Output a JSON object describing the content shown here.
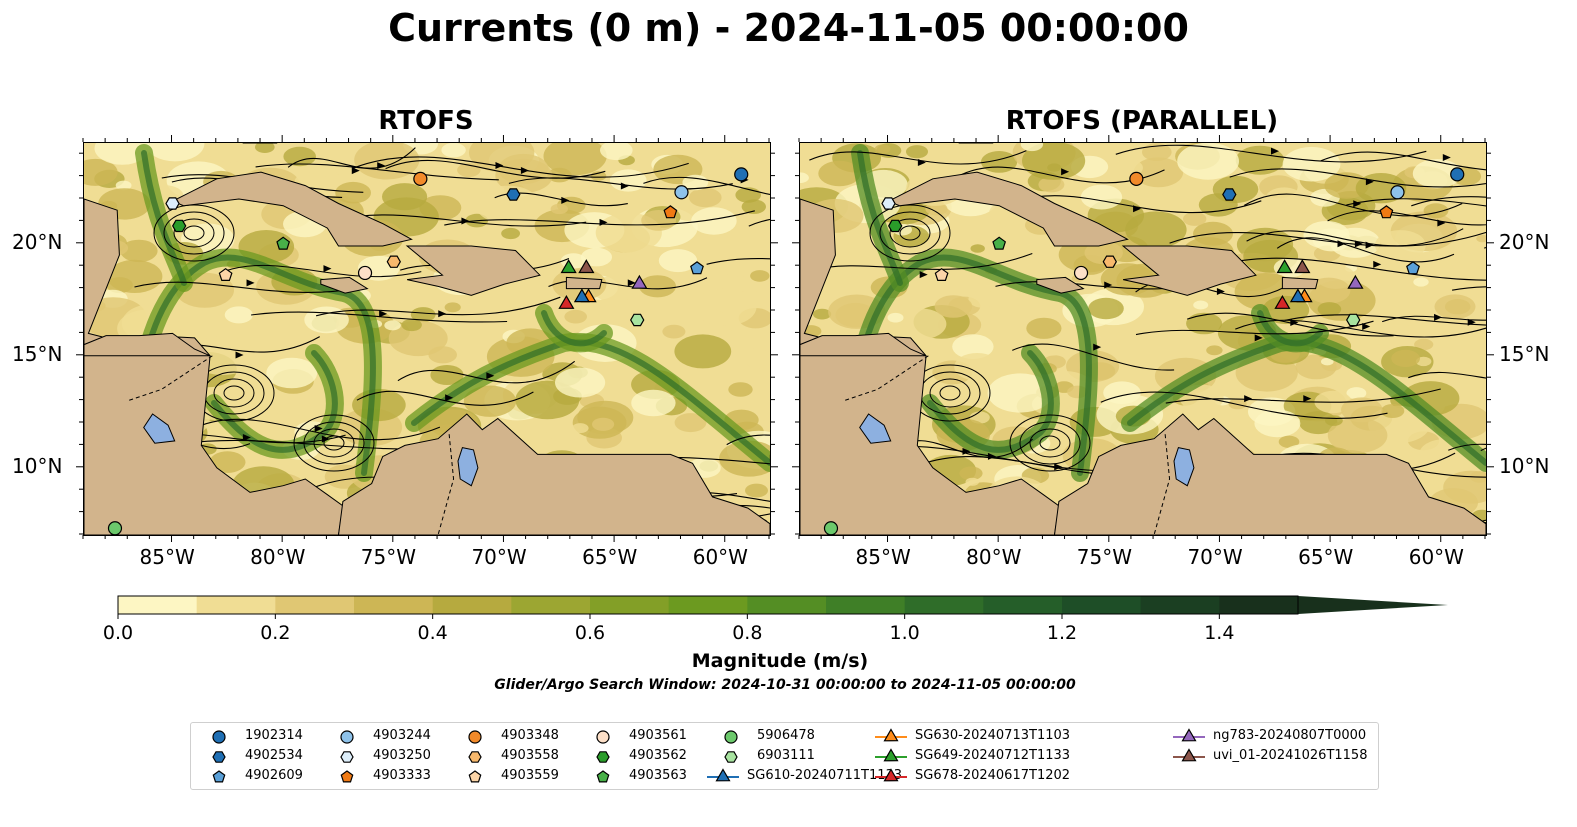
{
  "title": "Currents (0 m) - 2024-11-05 00:00:00",
  "panels": [
    {
      "title": "RTOFS"
    },
    {
      "title": "RTOFS (PARALLEL)"
    }
  ],
  "map": {
    "lon_ticks": [
      "85°W",
      "80°W",
      "75°W",
      "70°W",
      "65°W",
      "60°W"
    ],
    "lat_ticks": [
      "20°N",
      "15°N",
      "10°N"
    ],
    "lon_range": [
      -89,
      -58
    ],
    "lat_range": [
      7,
      24.5
    ]
  },
  "colorbar": {
    "label": "Magnitude (m/s)",
    "ticks": [
      "0.0",
      "0.2",
      "0.4",
      "0.6",
      "0.8",
      "1.0",
      "1.2",
      "1.4"
    ],
    "range": [
      0.0,
      1.5
    ],
    "extend": "max",
    "colors": [
      "#fdf6c3",
      "#f0dd94",
      "#e0c773",
      "#cdb655",
      "#b6aa3f",
      "#9ca632",
      "#839f27",
      "#6c9a20",
      "#548e24",
      "#3f7f27",
      "#2f6d29",
      "#255e29",
      "#1e4e27",
      "#1b3f22",
      "#18301c"
    ]
  },
  "search_window": "Glider/Argo Search Window: 2024-10-31 00:00:00 to 2024-11-05 00:00:00",
  "colors": {
    "land": "#d2b48c",
    "lake": "#8db0e0",
    "river": "#a0b8d8"
  },
  "legend": [
    {
      "label": "1902314",
      "marker": "circle",
      "color": "#1f6fb4"
    },
    {
      "label": "4902534",
      "marker": "hexagon",
      "color": "#1f6fb4"
    },
    {
      "label": "4902609",
      "marker": "pentagon",
      "color": "#5aa0d8"
    },
    {
      "label": "4903244",
      "marker": "circle",
      "color": "#8ec2ea"
    },
    {
      "label": "4903250",
      "marker": "hexagon",
      "color": "#ddeefa"
    },
    {
      "label": "4903333",
      "marker": "pentagon",
      "color": "#f07a14"
    },
    {
      "label": "4903348",
      "marker": "circle",
      "color": "#f28a2a"
    },
    {
      "label": "4903558",
      "marker": "hexagon",
      "color": "#f8b96d"
    },
    {
      "label": "4903559",
      "marker": "pentagon",
      "color": "#fcd5a8"
    },
    {
      "label": "4903561",
      "marker": "circle",
      "color": "#fde0c8"
    },
    {
      "label": "4903562",
      "marker": "hexagon",
      "color": "#2a9c2a"
    },
    {
      "label": "4903563",
      "marker": "pentagon",
      "color": "#48b048"
    },
    {
      "label": "5906478",
      "marker": "circle",
      "color": "#6cc96c"
    },
    {
      "label": "6903111",
      "marker": "hexagon",
      "color": "#a8e3a0"
    },
    {
      "label": "SG610-20240711T1133",
      "marker": "triangle",
      "color": "#1f6fb4"
    },
    {
      "label": "SG630-20240713T1103",
      "marker": "triangle",
      "color": "#ff8c1a"
    },
    {
      "label": "SG649-20240712T1133",
      "marker": "triangle",
      "color": "#2ca02c"
    },
    {
      "label": "SG678-20240617T1202",
      "marker": "triangle",
      "color": "#d62728"
    },
    {
      "label": "ng783-20240807T0000",
      "marker": "triangle",
      "color": "#9467bd"
    },
    {
      "label": "uvi_01-20241026T1158",
      "marker": "triangle",
      "color": "#8c564b"
    }
  ],
  "observations": [
    {
      "platform": "1902314",
      "lon": -59.3,
      "lat": 23.1
    },
    {
      "platform": "4902534",
      "lon": -69.6,
      "lat": 22.2
    },
    {
      "platform": "4902609",
      "lon": -61.3,
      "lat": 18.9
    },
    {
      "platform": "4903244",
      "lon": -62.0,
      "lat": 22.3
    },
    {
      "platform": "4903250",
      "lon": -85.0,
      "lat": 21.8
    },
    {
      "platform": "4903333",
      "lon": -62.5,
      "lat": 21.4
    },
    {
      "platform": "4903348",
      "lon": -73.8,
      "lat": 22.9
    },
    {
      "platform": "4903558",
      "lon": -75.0,
      "lat": 19.2
    },
    {
      "platform": "4903559",
      "lon": -82.6,
      "lat": 18.6
    },
    {
      "platform": "4903561",
      "lon": -76.3,
      "lat": 18.7
    },
    {
      "platform": "4903562",
      "lon": -84.7,
      "lat": 20.8
    },
    {
      "platform": "4903563",
      "lon": -80.0,
      "lat": 20.0
    },
    {
      "platform": "5906478",
      "lon": -87.6,
      "lat": 7.3
    },
    {
      "platform": "6903111",
      "lon": -64.0,
      "lat": 16.6
    },
    {
      "platform": "SG649-20240712T1133",
      "lon": -67.1,
      "lat": 18.9
    },
    {
      "platform": "uvi_01-20241026T1158",
      "lon": -66.3,
      "lat": 18.9
    },
    {
      "platform": "SG678-20240617T1202",
      "lon": -67.2,
      "lat": 17.3
    },
    {
      "platform": "SG630-20240713T1103",
      "lon": -66.2,
      "lat": 17.6
    },
    {
      "platform": "SG610-20240711T1133",
      "lon": -66.5,
      "lat": 17.6
    },
    {
      "platform": "ng783-20240807T0000",
      "lon": -63.9,
      "lat": 18.2
    }
  ]
}
